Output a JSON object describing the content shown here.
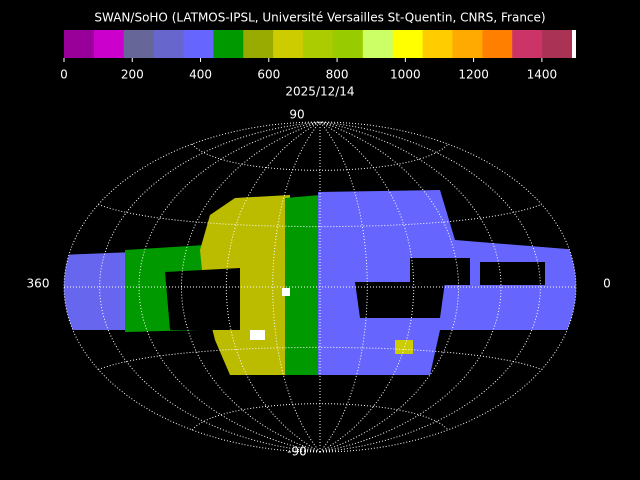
{
  "title": "SWAN/SoHO (LATMOS-IPSL, Université Versailles St-Quentin, CNRS, France)",
  "colorbar": {
    "colors": [
      "#990099",
      "#cc00cc",
      "#666699",
      "#6666cc",
      "#6666ff",
      "#009900",
      "#99aa00",
      "#cccc00",
      "#aacc00",
      "#99cc00",
      "#ccff66",
      "#ffff00",
      "#ffcc00",
      "#ffaa00",
      "#ff8000",
      "#cc3366",
      "#aa3355"
    ],
    "overflow_color": "#ffffff",
    "range": [
      0,
      1500
    ],
    "ticks": [
      0,
      200,
      400,
      600,
      800,
      1000,
      1200,
      1400
    ]
  },
  "date": "2025/12/14",
  "map": {
    "top_label": 90,
    "bottom_label": -90,
    "left_label": 360,
    "right_label": 0
  }
}
